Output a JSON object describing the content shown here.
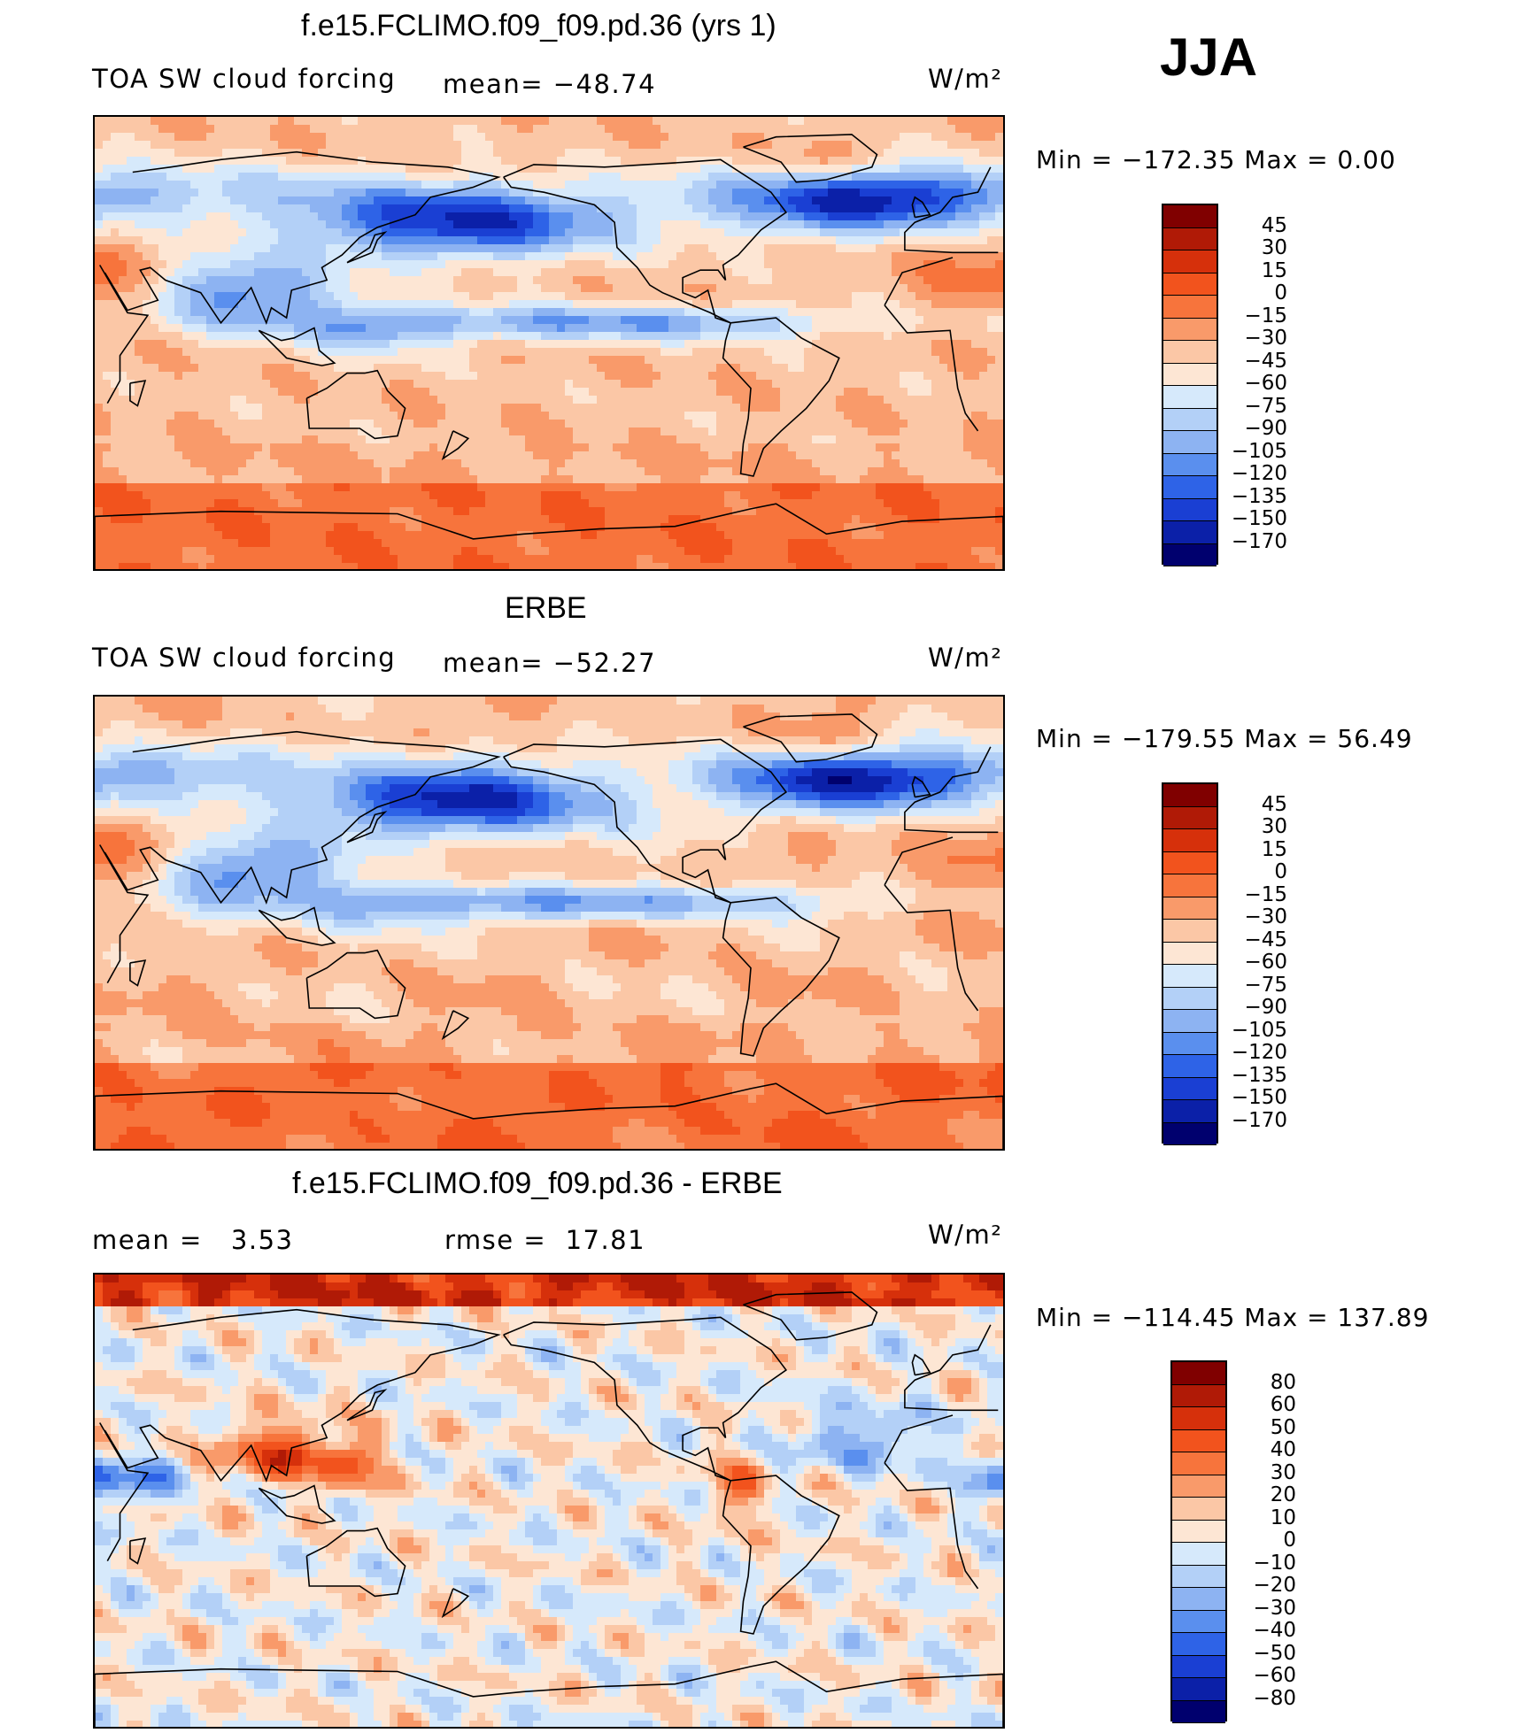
{
  "season": "JJA",
  "panels": [
    {
      "title": "f.e15.FCLIMO.f09_f09.pd.36 (yrs 1)",
      "left_text": "TOA SW cloud forcing",
      "mid_text": "mean= −48.74",
      "units": "W/m²",
      "minmax": "Min = −172.35 Max = 0.00",
      "colorbar": {
        "labels": [
          "45",
          "30",
          "15",
          "0",
          "−15",
          "−30",
          "−45",
          "−60",
          "−75",
          "−90",
          "−105",
          "−120",
          "−135",
          "−150",
          "−170"
        ],
        "colors": [
          "#800000",
          "#b01a06",
          "#d6300b",
          "#f2531d",
          "#f7743c",
          "#f99a6a",
          "#fbc7a6",
          "#fde6d4",
          "#d6e9fb",
          "#b3d0f7",
          "#8db3f2",
          "#5a8fee",
          "#2e63e7",
          "#1a3fd3",
          "#0b20a8",
          "#00006e"
        ]
      }
    },
    {
      "title": "ERBE",
      "left_text": "TOA SW cloud forcing",
      "mid_text": "mean= −52.27",
      "units": "W/m²",
      "minmax": "Min = −179.55 Max = 56.49",
      "colorbar": {
        "labels": [
          "45",
          "30",
          "15",
          "0",
          "−15",
          "−30",
          "−45",
          "−60",
          "−75",
          "−90",
          "−105",
          "−120",
          "−135",
          "−150",
          "−170"
        ],
        "colors": [
          "#800000",
          "#b01a06",
          "#d6300b",
          "#f2531d",
          "#f7743c",
          "#f99a6a",
          "#fbc7a6",
          "#fde6d4",
          "#d6e9fb",
          "#b3d0f7",
          "#8db3f2",
          "#5a8fee",
          "#2e63e7",
          "#1a3fd3",
          "#0b20a8",
          "#00006e"
        ]
      }
    },
    {
      "title": "f.e15.FCLIMO.f09_f09.pd.36 - ERBE",
      "left_text": "mean =   3.53",
      "mid_text": "rmse =  17.81",
      "units": "W/m²",
      "minmax": "Min = −114.45 Max = 137.89",
      "colorbar": {
        "labels": [
          "80",
          "60",
          "50",
          "40",
          "30",
          "20",
          "10",
          "0",
          "−10",
          "−20",
          "−30",
          "−40",
          "−50",
          "−60",
          "−80"
        ],
        "colors": [
          "#800000",
          "#b01a06",
          "#d6300b",
          "#f2531d",
          "#f7743c",
          "#f99a6a",
          "#fbc7a6",
          "#fde6d4",
          "#d6e9fb",
          "#b3d0f7",
          "#8db3f2",
          "#5a8fee",
          "#2e63e7",
          "#1a3fd3",
          "#0b20a8",
          "#00006e"
        ]
      }
    }
  ],
  "chart_data": [
    {
      "type": "heatmap",
      "title": "f.e15.FCLIMO.f09_f09.pd.36 (yrs 1)",
      "variable": "TOA SW cloud forcing",
      "units": "W/m2",
      "mean": -48.74,
      "min": -172.35,
      "max": 0.0,
      "levels": [
        45,
        30,
        15,
        0,
        -15,
        -30,
        -45,
        -60,
        -75,
        -90,
        -105,
        -120,
        -135,
        -150,
        -170
      ]
    },
    {
      "type": "heatmap",
      "title": "ERBE",
      "variable": "TOA SW cloud forcing",
      "units": "W/m2",
      "mean": -52.27,
      "min": -179.55,
      "max": 56.49,
      "levels": [
        45,
        30,
        15,
        0,
        -15,
        -30,
        -45,
        -60,
        -75,
        -90,
        -105,
        -120,
        -135,
        -150,
        -170
      ]
    },
    {
      "type": "heatmap",
      "title": "f.e15.FCLIMO.f09_f09.pd.36 - ERBE",
      "units": "W/m2",
      "mean": 3.53,
      "rmse": 17.81,
      "min": -114.45,
      "max": 137.89,
      "levels": [
        80,
        60,
        50,
        40,
        30,
        20,
        10,
        0,
        -10,
        -20,
        -30,
        -40,
        -50,
        -60,
        -80
      ]
    }
  ]
}
